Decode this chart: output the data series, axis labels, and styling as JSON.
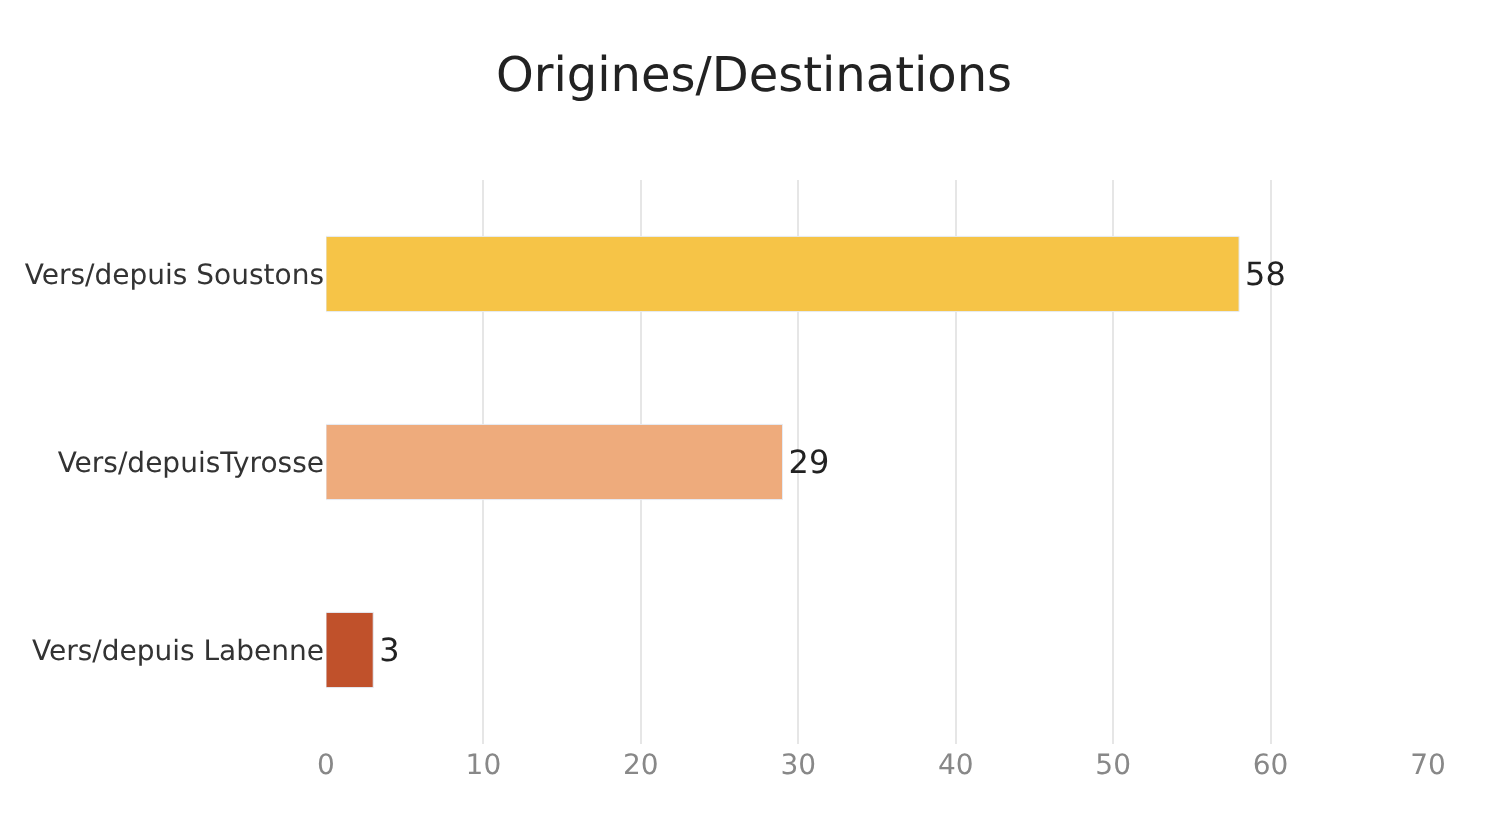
{
  "chart_data": {
    "type": "bar",
    "orientation": "horizontal",
    "title": "Origines/Destinations",
    "categories": [
      "Vers/depuis Soustons",
      "Vers/depuisTyrosse",
      "Vers/depuis Labenne"
    ],
    "values": [
      58,
      29,
      3
    ],
    "colors": [
      "#f6c447",
      "#eeab7c",
      "#c0512b"
    ],
    "xlim": [
      0,
      70
    ],
    "xticks": [
      0,
      10,
      20,
      30,
      40,
      50,
      60,
      70
    ],
    "grid": "x",
    "data_labels": true
  }
}
